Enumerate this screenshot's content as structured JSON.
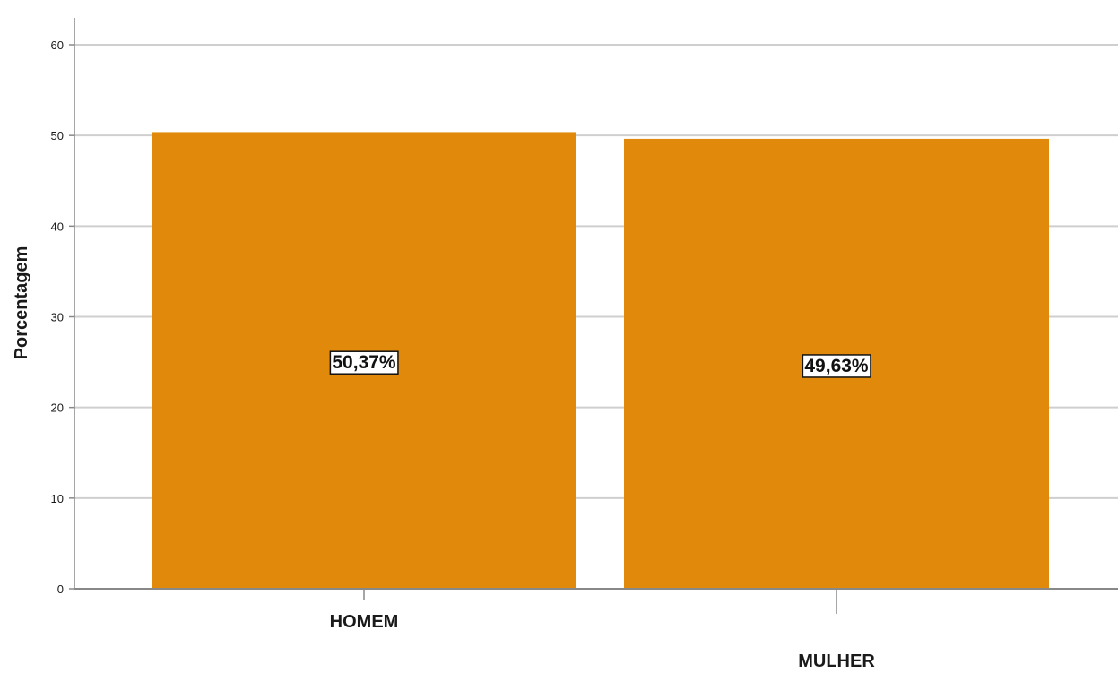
{
  "chart_data": {
    "type": "bar",
    "ylabel": "Porcentagem",
    "xlabel": "",
    "categories": [
      "HOMEM",
      "MULHER"
    ],
    "values": [
      50.37,
      49.63
    ],
    "data_labels": [
      "50,37%",
      "49,63%"
    ],
    "ylim": [
      0,
      60
    ],
    "yticks": [
      0,
      10,
      20,
      30,
      40,
      50,
      60
    ],
    "grid": true,
    "legend": "none",
    "bar_color": "#e0890b",
    "grid_color": "#cfcfcf",
    "axis_color": "#888888"
  }
}
